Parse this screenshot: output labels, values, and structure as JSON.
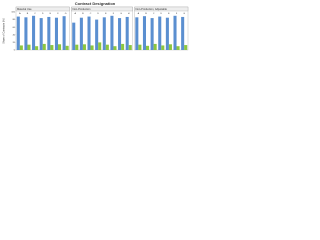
{
  "title": "Contract Designation",
  "y_label": "Share of Contracts (%)",
  "chart_data": [
    {
      "type": "bar",
      "title": "Material Use",
      "categories": [
        "A",
        "B",
        "C",
        "D",
        "E",
        "F",
        "G"
      ],
      "series": [
        {
          "name": "Primary",
          "color": "#5b8fd0",
          "values": [
            88,
            86,
            90,
            84,
            87,
            85,
            89
          ]
        },
        {
          "name": "Secondary",
          "color": "#8cc63f",
          "values": [
            12,
            14,
            10,
            16,
            13,
            15,
            11
          ]
        }
      ],
      "ylim": [
        0,
        100
      ],
      "yticks": [
        0,
        20,
        40,
        60,
        80,
        100
      ]
    },
    {
      "type": "bar",
      "title": "Non-Production",
      "categories": [
        "A",
        "B",
        "C",
        "D",
        "E",
        "F",
        "G",
        "H"
      ],
      "series": [
        {
          "name": "Primary",
          "color": "#5b8fd0",
          "values": [
            72,
            85,
            88,
            80,
            86,
            90,
            84,
            87
          ]
        },
        {
          "name": "Secondary",
          "color": "#8cc63f",
          "values": [
            14,
            15,
            12,
            20,
            14,
            10,
            16,
            13
          ]
        }
      ],
      "ylim": [
        0,
        100
      ]
    },
    {
      "type": "bar",
      "title": "Non-Production, Adjustable",
      "categories": [
        "A",
        "B",
        "C",
        "D",
        "E",
        "F",
        "G"
      ],
      "series": [
        {
          "name": "Primary",
          "color": "#5b8fd0",
          "values": [
            86,
            89,
            84,
            88,
            85,
            90,
            87
          ]
        },
        {
          "name": "Secondary",
          "color": "#8cc63f",
          "values": [
            14,
            11,
            16,
            12,
            15,
            10,
            13
          ]
        }
      ],
      "ylim": [
        0,
        100
      ]
    }
  ]
}
